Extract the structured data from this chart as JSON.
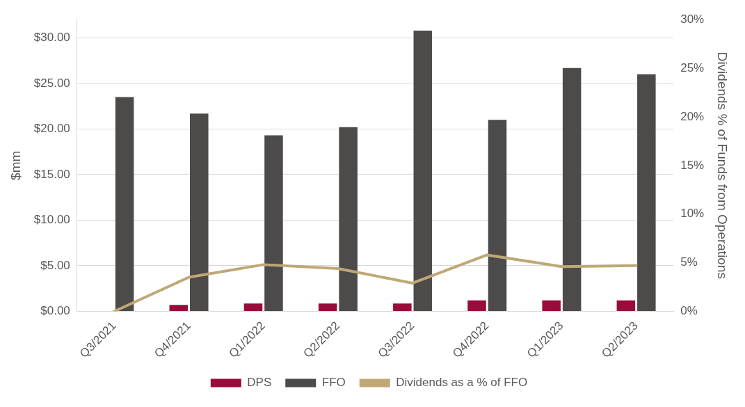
{
  "chart_data": {
    "type": "bar",
    "categories": [
      "Q3/2021",
      "Q4/2021",
      "Q1/2022",
      "Q2/2022",
      "Q3/2022",
      "Q4/2022",
      "Q1/2023",
      "Q2/2023"
    ],
    "series": [
      {
        "name": "DPS",
        "color": "#9b0a3a",
        "values": [
          0,
          0.7,
          0.85,
          0.85,
          0.85,
          1.2,
          1.2,
          1.2
        ]
      },
      {
        "name": "FFO",
        "color": "#4d4a4a",
        "values": [
          23.5,
          21.7,
          19.3,
          20.2,
          30.8,
          21.0,
          26.7,
          26.0
        ]
      },
      {
        "name": "Dividends as a % of FFO",
        "type": "line",
        "axis": "y2",
        "color": "#bfa876",
        "values": [
          0,
          3.5,
          4.8,
          4.4,
          2.9,
          5.8,
          4.6,
          4.7
        ]
      }
    ],
    "ylabel": "$mm",
    "y2label": "Dividends % of Funds from Operations",
    "ylim": [
      0,
      32
    ],
    "yticks": [
      {
        "value": 0,
        "label": "$0.00"
      },
      {
        "value": 5,
        "label": "$5.00"
      },
      {
        "value": 10,
        "label": "$10.00"
      },
      {
        "value": 15,
        "label": "$15.00"
      },
      {
        "value": 20,
        "label": "$20.00"
      },
      {
        "value": 25,
        "label": "$25.00"
      },
      {
        "value": 30,
        "label": "$30.00"
      }
    ],
    "y2lim": [
      0,
      30
    ],
    "y2ticks": [
      {
        "value": 0,
        "label": "0%"
      },
      {
        "value": 5,
        "label": "5%"
      },
      {
        "value": 10,
        "label": "10%"
      },
      {
        "value": 15,
        "label": "15%"
      },
      {
        "value": 20,
        "label": "20%"
      },
      {
        "value": 25,
        "label": "25%"
      },
      {
        "value": 30,
        "label": "30%"
      }
    ],
    "grid": "y",
    "legend": "bottom",
    "marker": "none"
  }
}
